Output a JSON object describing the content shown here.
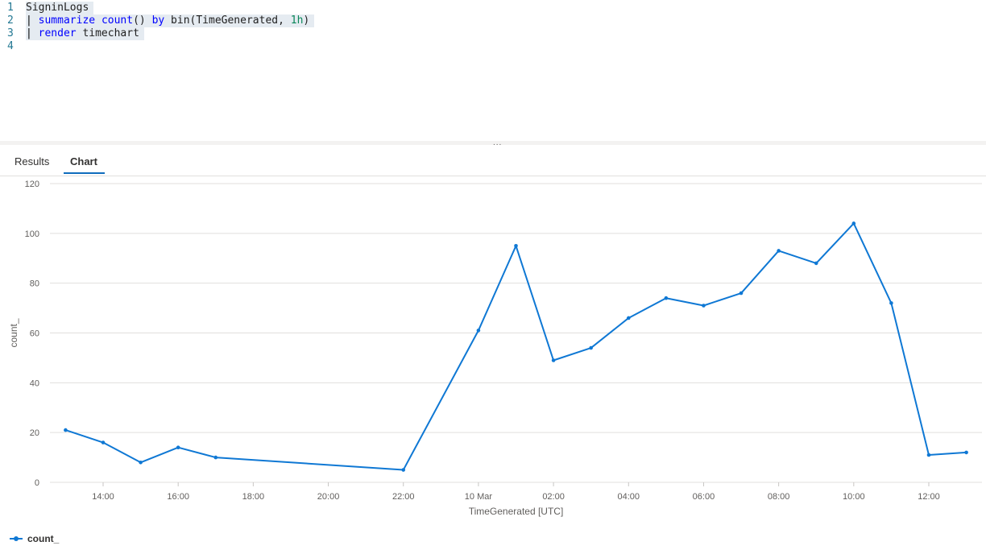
{
  "editor": {
    "lines": [
      {
        "num": "1",
        "tokens": [
          {
            "t": "SigninLogs",
            "c": "plain"
          }
        ]
      },
      {
        "num": "2",
        "tokens": [
          {
            "t": "| ",
            "c": "op"
          },
          {
            "t": "summarize",
            "c": "kw"
          },
          {
            "t": " ",
            "c": "plain"
          },
          {
            "t": "count",
            "c": "kw"
          },
          {
            "t": "() ",
            "c": "plain"
          },
          {
            "t": "by",
            "c": "kw"
          },
          {
            "t": " bin(TimeGenerated, ",
            "c": "plain"
          },
          {
            "t": "1h",
            "c": "num"
          },
          {
            "t": ")",
            "c": "plain"
          }
        ]
      },
      {
        "num": "3",
        "tokens": [
          {
            "t": "| ",
            "c": "op"
          },
          {
            "t": "render",
            "c": "kw"
          },
          {
            "t": " timechart",
            "c": "plain"
          }
        ]
      },
      {
        "num": "4",
        "tokens": []
      }
    ]
  },
  "splitter": {
    "grip": "..."
  },
  "tabs": [
    {
      "label": "Results",
      "active": false
    },
    {
      "label": "Chart",
      "active": true
    }
  ],
  "chart_data": {
    "type": "line",
    "xlabel": "TimeGenerated [UTC]",
    "ylabel": "count_",
    "ylim": [
      0,
      120
    ],
    "yticks": [
      0,
      20,
      40,
      60,
      80,
      100,
      120
    ],
    "xlim": [
      "2024-03-09T12:35",
      "2024-03-10T13:25"
    ],
    "xticks": [
      {
        "at": "2024-03-09T14:00",
        "label": "14:00"
      },
      {
        "at": "2024-03-09T16:00",
        "label": "16:00"
      },
      {
        "at": "2024-03-09T18:00",
        "label": "18:00"
      },
      {
        "at": "2024-03-09T20:00",
        "label": "20:00"
      },
      {
        "at": "2024-03-09T22:00",
        "label": "22:00"
      },
      {
        "at": "2024-03-10T00:00",
        "label": "10 Mar"
      },
      {
        "at": "2024-03-10T02:00",
        "label": "02:00"
      },
      {
        "at": "2024-03-10T04:00",
        "label": "04:00"
      },
      {
        "at": "2024-03-10T06:00",
        "label": "06:00"
      },
      {
        "at": "2024-03-10T08:00",
        "label": "08:00"
      },
      {
        "at": "2024-03-10T10:00",
        "label": "10:00"
      },
      {
        "at": "2024-03-10T12:00",
        "label": "12:00"
      }
    ],
    "grid": true,
    "legend": "bottom-left",
    "series": [
      {
        "name": "count_",
        "color": "#0f78d4",
        "x": [
          "2024-03-09T13:00",
          "2024-03-09T14:00",
          "2024-03-09T15:00",
          "2024-03-09T16:00",
          "2024-03-09T17:00",
          "2024-03-09T22:00",
          "2024-03-10T00:00",
          "2024-03-10T01:00",
          "2024-03-10T02:00",
          "2024-03-10T03:00",
          "2024-03-10T04:00",
          "2024-03-10T05:00",
          "2024-03-10T06:00",
          "2024-03-10T07:00",
          "2024-03-10T08:00",
          "2024-03-10T09:00",
          "2024-03-10T10:00",
          "2024-03-10T11:00",
          "2024-03-10T12:00",
          "2024-03-10T13:00"
        ],
        "y": [
          21,
          16,
          8,
          14,
          10,
          5,
          61,
          95,
          49,
          54,
          66,
          74,
          71,
          76,
          93,
          88,
          104,
          72,
          11,
          12
        ]
      }
    ]
  }
}
